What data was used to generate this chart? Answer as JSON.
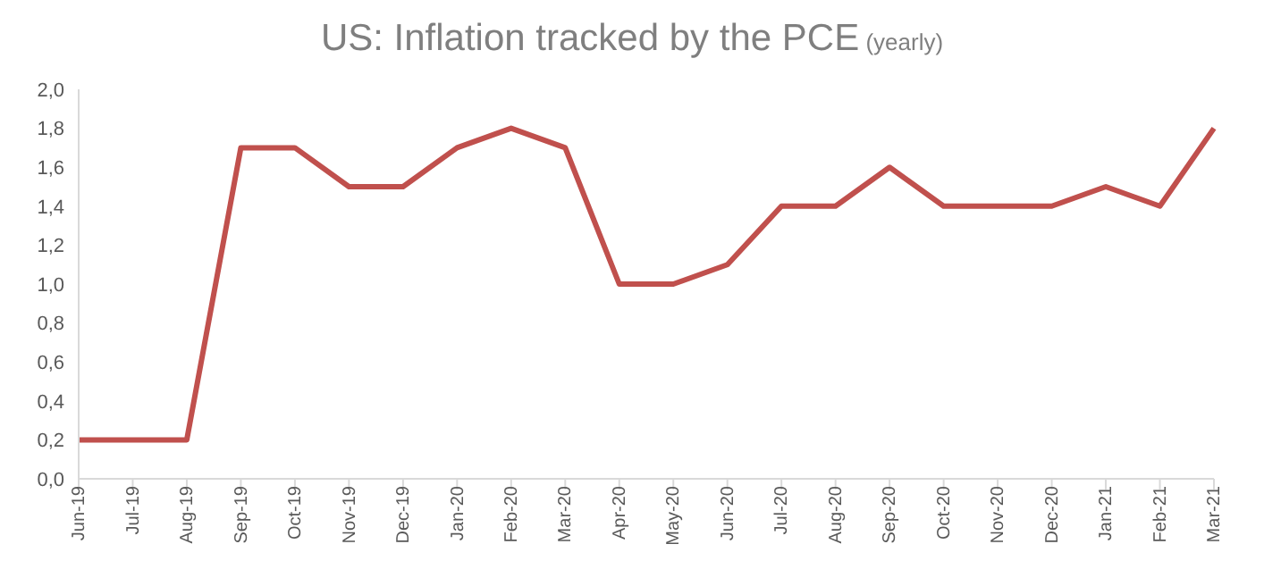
{
  "chart_data": {
    "type": "line",
    "title": "US: Inflation tracked by the PCE",
    "subtitle": "(yearly)",
    "categories": [
      "Jun-19",
      "Jul-19",
      "Aug-19",
      "Sep-19",
      "Oct-19",
      "Nov-19",
      "Dec-19",
      "Jan-20",
      "Feb-20",
      "Mar-20",
      "Apr-20",
      "May-20",
      "Jun-20",
      "Jul-20",
      "Aug-20",
      "Sep-20",
      "Oct-20",
      "Nov-20",
      "Dec-20",
      "Jan-21",
      "Feb-21",
      "Mar-21"
    ],
    "series": [
      {
        "color": "#c0504d",
        "values": [
          0.2,
          0.2,
          0.2,
          1.7,
          1.7,
          1.5,
          1.5,
          1.7,
          1.8,
          1.7,
          1.0,
          1.0,
          1.1,
          1.4,
          1.4,
          1.6,
          1.4,
          1.4,
          1.4,
          1.5,
          1.4,
          1.8
        ]
      }
    ],
    "ylim": [
      0,
      2
    ],
    "yticks": [
      {
        "value": 0,
        "label": "0,0"
      },
      {
        "value": 0.2,
        "label": "0,2"
      },
      {
        "value": 0.4,
        "label": "0,4"
      },
      {
        "value": 0.6,
        "label": "0,6"
      },
      {
        "value": 0.8,
        "label": "0,8"
      },
      {
        "value": 1,
        "label": "1,0"
      },
      {
        "value": 1.2,
        "label": "1,2"
      },
      {
        "value": 1.4,
        "label": "1,4"
      },
      {
        "value": 1.6,
        "label": "1,6"
      },
      {
        "value": 1.8,
        "label": "1,8"
      },
      {
        "value": 2,
        "label": "2,0"
      }
    ],
    "grid": false,
    "legend": false,
    "marker": "none",
    "line_style": "solid"
  }
}
